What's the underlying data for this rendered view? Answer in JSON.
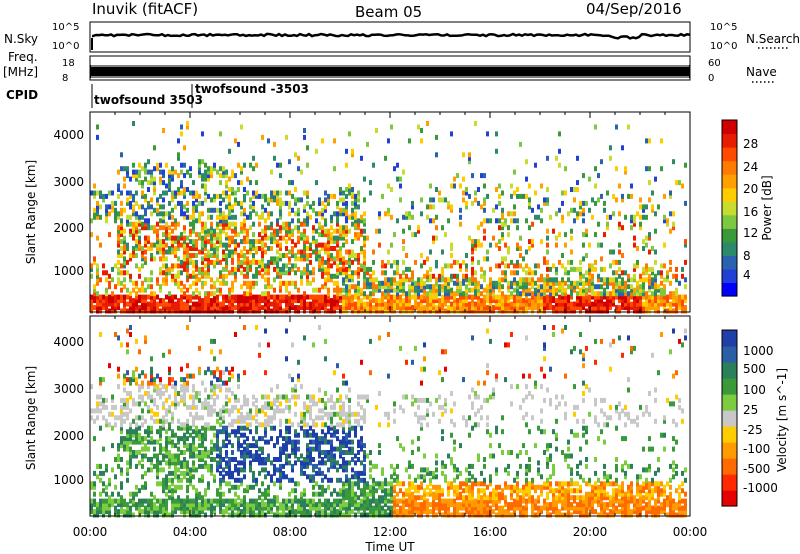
{
  "header": {
    "station": "Inuvik (fitACF)",
    "beam": "Beam 05",
    "date": "04/Sep/2016"
  },
  "side_labels": {
    "nsky": "N.Sky",
    "nsearch": "N.Search",
    "freq_line1": "Freq.",
    "freq_line2": "[MHz]",
    "nave": "Nave",
    "cpid": "CPID"
  },
  "noise_panel": {
    "left_ticks": [
      "10^5",
      "10^0"
    ],
    "right_ticks": [
      "10^5",
      "10^0"
    ]
  },
  "freq_panel": {
    "left_ticks": [
      "18",
      "8"
    ],
    "right_ticks": [
      "60",
      "0"
    ]
  },
  "cpid_labels": [
    "twofsound 3503",
    "twofsound -3503"
  ],
  "x_axis": {
    "label": "Time UT",
    "ticks": [
      "00:00",
      "04:00",
      "08:00",
      "12:00",
      "16:00",
      "20:00",
      "00:00"
    ]
  },
  "chart_data": [
    {
      "type": "heatmap",
      "ylabel": "Slant Range [km]",
      "yticks": [
        "1000",
        "2000",
        "3000",
        "4000"
      ],
      "ylim": [
        180,
        4500
      ],
      "xlim": [
        0,
        24
      ],
      "colorbar": {
        "label": "Power [dB]",
        "ticks": [
          "4",
          "8",
          "12",
          "16",
          "20",
          "24",
          "28"
        ],
        "range": [
          0,
          30
        ],
        "colors": [
          "#0000ff",
          "#2040d8",
          "#2a62b0",
          "#2c8a6a",
          "#3a9a3a",
          "#7cc840",
          "#c8dc30",
          "#ffcc00",
          "#ffa000",
          "#ff7a00",
          "#ff4a00",
          "#e81c00",
          "#d00000"
        ]
      }
    },
    {
      "type": "heatmap",
      "ylabel": "Slant Range [km]",
      "yticks": [
        "1000",
        "2000",
        "3000",
        "4000"
      ],
      "ylim": [
        180,
        4500
      ],
      "xlim": [
        0,
        24
      ],
      "colorbar": {
        "label": "Velocity [m s^-1]",
        "ticks": [
          "1000",
          "500",
          "100",
          "25",
          "-25",
          "-100",
          "-500",
          "-1000"
        ],
        "colors": [
          "#1f3fa8",
          "#2a5fa8",
          "#2b7f5a",
          "#3a9a3a",
          "#7ccc40",
          "#c8c8c8",
          "#ffcc00",
          "#ff9a00",
          "#ff6a00",
          "#ff2a00",
          "#e60000"
        ]
      }
    }
  ]
}
